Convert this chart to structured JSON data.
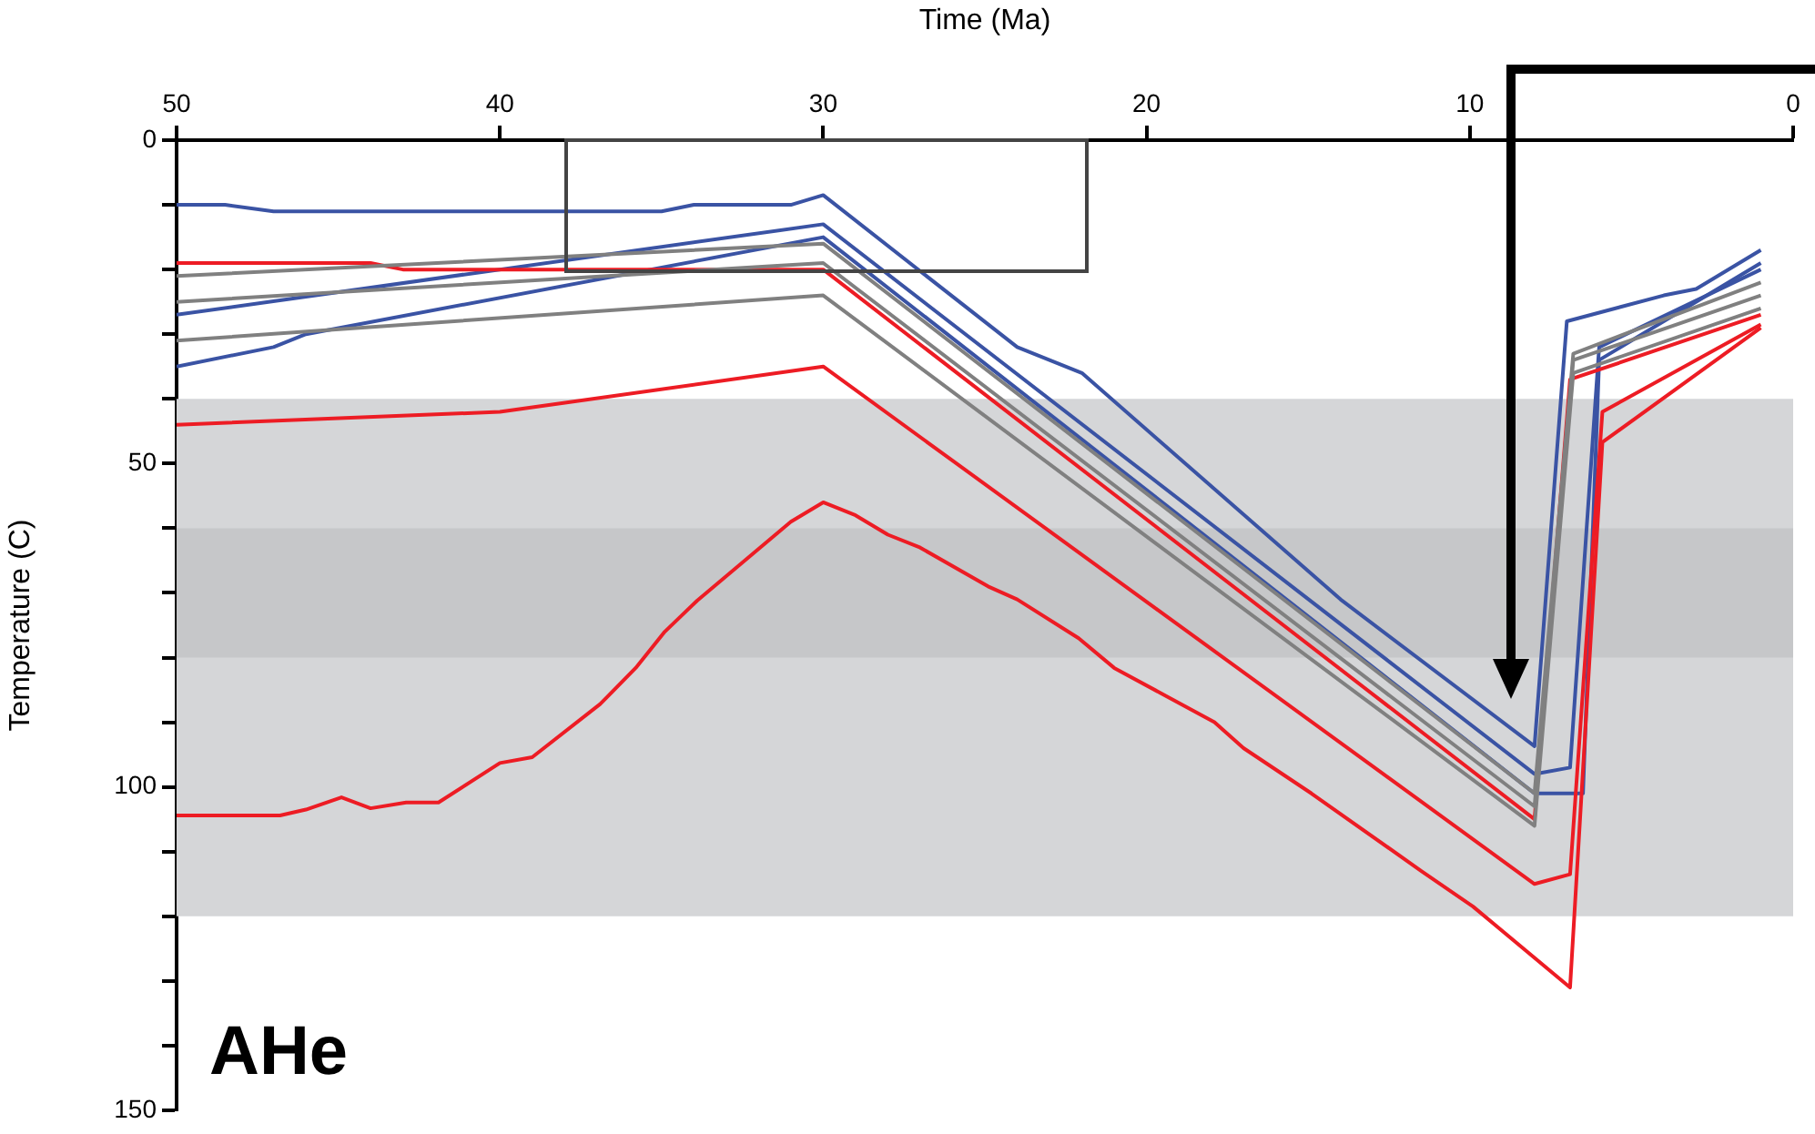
{
  "chart_data": {
    "type": "line",
    "xlabel": "Time (Ma)",
    "ylabel": "Temperature (C)",
    "xlim": [
      50,
      0
    ],
    "xticks": [
      50,
      40,
      30,
      20,
      10,
      0
    ],
    "ylim": [
      150,
      0
    ],
    "yticks": [
      0,
      {
        "value": 10,
        "label": null
      },
      {
        "value": 20,
        "label": null
      },
      {
        "value": 30,
        "label": null
      },
      {
        "value": 40,
        "label": null
      },
      50,
      {
        "value": 60,
        "label": null
      },
      {
        "value": 70,
        "label": null
      },
      {
        "value": 80,
        "label": null
      },
      {
        "value": 90,
        "label": null
      },
      100,
      {
        "value": 110,
        "label": null
      },
      {
        "value": 120,
        "label": null
      },
      {
        "value": 130,
        "label": null
      },
      {
        "value": 140,
        "label": null
      },
      150
    ],
    "grid": false,
    "legend": false,
    "marker": "none",
    "line_style": "solid",
    "bands": [
      {
        "axis": "y",
        "from": 40,
        "to": 120,
        "color": "#d5d6d8"
      },
      {
        "axis": "y",
        "from": 60,
        "to": 80,
        "color": "#c6c7c9"
      }
    ],
    "annotations": [
      "AHe"
    ],
    "series": [
      {
        "color": "#808080",
        "x": [
          50,
          30,
          8,
          6.8,
          1
        ],
        "values": [
          21,
          16,
          101,
          33,
          22
        ]
      },
      {
        "color": "#808080",
        "x": [
          50,
          30,
          8,
          6.8,
          1
        ],
        "values": [
          25,
          19,
          103,
          34,
          24
        ]
      },
      {
        "color": "#808080",
        "x": [
          50,
          30,
          8,
          6.8,
          1
        ],
        "values": [
          31,
          24,
          106,
          36,
          26
        ]
      },
      {
        "color": "#ed1c24",
        "x": [
          50,
          44,
          43,
          30,
          8,
          6.9,
          1
        ],
        "values": [
          19,
          19,
          20,
          20,
          105,
          37,
          27
        ]
      },
      {
        "color": "#ed1c24",
        "x": [
          50,
          46.8,
          46,
          44.9,
          44,
          42.9,
          41.9,
          40,
          39,
          36.9,
          35.8,
          34.9,
          33.9,
          31,
          30,
          29,
          28,
          27,
          24.9,
          24,
          22.1,
          21,
          17.9,
          17,
          14.9,
          11.5,
          9.9,
          6.9,
          5.9,
          1
        ],
        "values": [
          104.4,
          104.4,
          103.5,
          101.6,
          103.3,
          102.4,
          102.4,
          96.3,
          95.4,
          87.2,
          81.6,
          76,
          71.2,
          59,
          56,
          58,
          61,
          63,
          69,
          71,
          77,
          81.6,
          90,
          94,
          101,
          113,
          118.5,
          131,
          46.7,
          29
        ]
      },
      {
        "color": "#ed1c24",
        "x": [
          50,
          40,
          30,
          8,
          6.9,
          5.9,
          1
        ],
        "values": [
          44,
          42,
          35,
          115,
          113.5,
          42,
          28.5
        ]
      },
      {
        "color": "#3a53a4",
        "x": [
          50,
          48.5,
          47,
          35,
          34,
          31,
          30,
          24,
          22,
          14,
          8,
          7,
          4,
          3,
          1
        ],
        "values": [
          10,
          10,
          11,
          11,
          10,
          10,
          8.5,
          32,
          36,
          71,
          93.7,
          28,
          24,
          23,
          17
        ]
      },
      {
        "color": "#3a53a4",
        "x": [
          50,
          47,
          46,
          30,
          8,
          6.5,
          6,
          1
        ],
        "values": [
          35,
          32,
          30,
          15,
          101,
          101,
          34,
          19
        ]
      },
      {
        "color": "#3a53a4",
        "x": [
          50,
          30,
          8,
          6.9,
          6,
          1
        ],
        "values": [
          27,
          13,
          98,
          97,
          32,
          20
        ]
      }
    ]
  }
}
